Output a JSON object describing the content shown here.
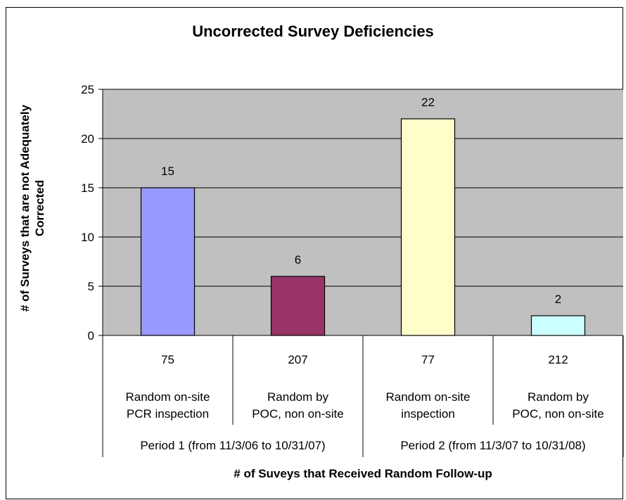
{
  "chart_data": {
    "type": "bar",
    "title": "Uncorrected Survey Deficiencies",
    "ylabel": "# of Surveys that are not Adequately Corrected",
    "xlabel": "# of Suveys that Received Random Follow-up",
    "ylim": [
      0,
      25
    ],
    "yticks": [
      0,
      5,
      10,
      15,
      20,
      25
    ],
    "categories": [
      {
        "count": "75",
        "label": [
          "Random on-site",
          "PCR inspection"
        ]
      },
      {
        "count": "207",
        "label": [
          "Random by",
          "POC, non on-site"
        ]
      },
      {
        "count": "77",
        "label": [
          "Random on-site",
          "inspection"
        ]
      },
      {
        "count": "212",
        "label": [
          "Random by",
          "POC, non on-site"
        ]
      }
    ],
    "values": [
      15,
      6,
      22,
      2
    ],
    "colors": [
      "#9999ff",
      "#993366",
      "#ffffcc",
      "#ccffff"
    ],
    "groups": [
      {
        "label": "Period 1 (from 11/3/06 to 10/31/07)",
        "span": 2
      },
      {
        "label": "Period 2 (from 11/3/07 to 10/31/08)",
        "span": 2
      }
    ],
    "plot_background": "#c0c0c0",
    "grid": true,
    "data_labels": true
  }
}
